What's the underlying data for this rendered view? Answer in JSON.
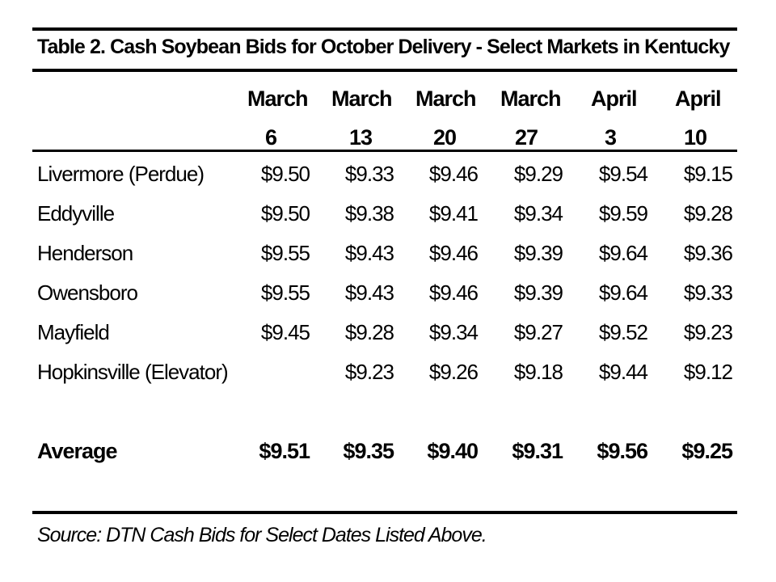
{
  "table": {
    "title": "Table 2. Cash Soybean Bids for October Delivery - Select Markets in Kentucky",
    "columns": [
      {
        "month": "March",
        "day": "6"
      },
      {
        "month": "March",
        "day": "13"
      },
      {
        "month": "March",
        "day": "20"
      },
      {
        "month": "March",
        "day": "27"
      },
      {
        "month": "April",
        "day": "3"
      },
      {
        "month": "April",
        "day": "10"
      }
    ],
    "rows": [
      {
        "label": "Livermore (Perdue)",
        "values": [
          "$9.50",
          "$9.33",
          "$9.46",
          "$9.29",
          "$9.54",
          "$9.15"
        ]
      },
      {
        "label": "Eddyville",
        "values": [
          "$9.50",
          "$9.38",
          "$9.41",
          "$9.34",
          "$9.59",
          "$9.28"
        ]
      },
      {
        "label": "Henderson",
        "values": [
          "$9.55",
          "$9.43",
          "$9.46",
          "$9.39",
          "$9.64",
          "$9.36"
        ]
      },
      {
        "label": "Owensboro",
        "values": [
          "$9.55",
          "$9.43",
          "$9.46",
          "$9.39",
          "$9.64",
          "$9.33"
        ]
      },
      {
        "label": "Mayfield",
        "values": [
          "$9.45",
          "$9.28",
          "$9.34",
          "$9.27",
          "$9.52",
          "$9.23"
        ]
      },
      {
        "label": "Hopkinsville (Elevator)",
        "values": [
          "",
          "$9.23",
          "$9.26",
          "$9.18",
          "$9.44",
          "$9.12"
        ]
      }
    ],
    "average": {
      "label": "Average",
      "values": [
        "$9.51",
        "$9.35",
        "$9.40",
        "$9.31",
        "$9.56",
        "$9.25"
      ]
    },
    "source": "Source: DTN Cash Bids for Select Dates Listed Above."
  }
}
